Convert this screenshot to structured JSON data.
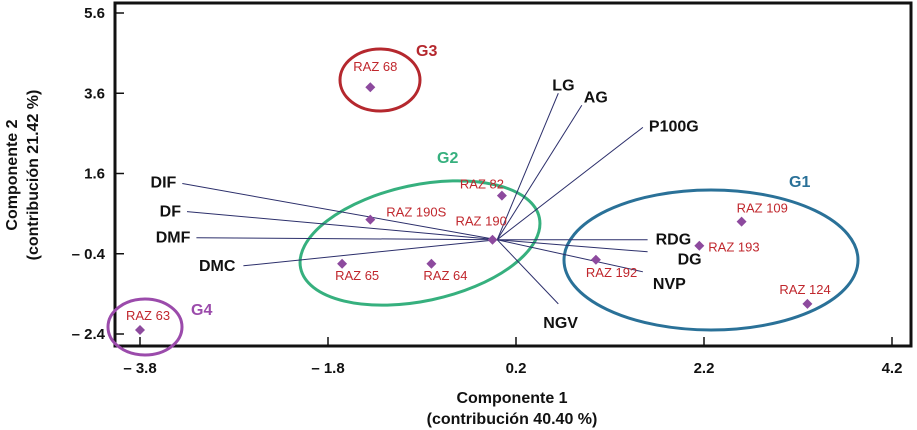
{
  "chart_data": {
    "type": "scatter",
    "subtype": "biplot",
    "x_axis": {
      "title": "Componente 1",
      "subtitle": "(contribución 40.40 %)",
      "range": [
        -4.0,
        4.4
      ],
      "ticks": [
        -3.8,
        -1.8,
        0.2,
        2.2,
        4.2
      ],
      "tick_labels": [
        "– 3.8",
        "– 1.8",
        "0.2",
        "2.2",
        "4.2"
      ]
    },
    "y_axis": {
      "title": "Componente 2",
      "subtitle": "(contribución 21.42 %)",
      "range": [
        -2.4,
        5.6
      ],
      "ticks": [
        5.6,
        3.6,
        1.6,
        -0.4,
        -2.4
      ],
      "tick_labels": [
        "5.6",
        "3.6",
        "1.6",
        "– 0.4",
        "– 2.4"
      ]
    },
    "origin": [
      0.0,
      -0.05
    ],
    "points": [
      {
        "label": "RAZ 68",
        "x": -1.35,
        "y": 3.75
      },
      {
        "label": "RAZ 82",
        "x": 0.05,
        "y": 1.05
      },
      {
        "label": "RAZ 190S",
        "x": -1.35,
        "y": 0.45
      },
      {
        "label": "RAZ 190",
        "x": -0.05,
        "y": -0.05
      },
      {
        "label": "RAZ 65",
        "x": -1.65,
        "y": -0.65
      },
      {
        "label": "RAZ 64",
        "x": -0.7,
        "y": -0.65
      },
      {
        "label": "RAZ 109",
        "x": 2.6,
        "y": 0.4
      },
      {
        "label": "RAZ 193",
        "x": 2.15,
        "y": -0.2
      },
      {
        "label": "RAZ 192",
        "x": 1.05,
        "y": -0.55
      },
      {
        "label": "RAZ 124",
        "x": 3.3,
        "y": -1.65
      },
      {
        "label": "RAZ 63",
        "x": -3.8,
        "y": -2.3
      }
    ],
    "vectors": [
      {
        "label": "LG",
        "x": 0.65,
        "y": 3.6
      },
      {
        "label": "AG",
        "x": 0.9,
        "y": 3.3
      },
      {
        "label": "P100G",
        "x": 1.55,
        "y": 2.75
      },
      {
        "label": "DIF",
        "x": -3.35,
        "y": 1.35
      },
      {
        "label": "DF",
        "x": -3.3,
        "y": 0.65
      },
      {
        "label": "DMF",
        "x": -3.2,
        "y": 0.0
      },
      {
        "label": "DMC",
        "x": -2.7,
        "y": -0.7
      },
      {
        "label": "RDG",
        "x": 1.6,
        "y": -0.05
      },
      {
        "label": "DG",
        "x": 1.6,
        "y": -0.35
      },
      {
        "label": "NVP",
        "x": 1.55,
        "y": -0.85
      },
      {
        "label": "NGV",
        "x": 0.65,
        "y": -1.65
      }
    ],
    "groups": [
      {
        "label": "G1",
        "color": "#2a7198"
      },
      {
        "label": "G2",
        "color": "#36b07e"
      },
      {
        "label": "G3",
        "color": "#b5282e"
      },
      {
        "label": "G4",
        "color": "#9b4bab"
      }
    ],
    "marker_color": "#8d4a9e"
  }
}
